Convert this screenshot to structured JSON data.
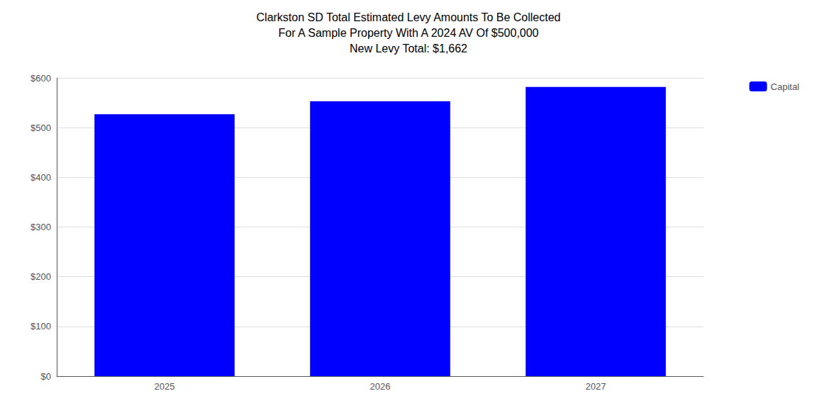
{
  "chart_data": {
    "type": "bar",
    "title": "Clarkston SD Total Estimated Levy Amounts To Be Collected\nFor A Sample Property With A 2024 AV Of $500,000\nNew Levy Total: $1,662",
    "categories": [
      "2025",
      "2026",
      "2027"
    ],
    "series": [
      {
        "name": "Capital",
        "color": "#0000FF",
        "values": [
          527,
          553,
          582
        ]
      }
    ],
    "ylim": [
      0,
      600
    ],
    "yticks": [
      {
        "value": 0,
        "label": "$0"
      },
      {
        "value": 100,
        "label": "$100"
      },
      {
        "value": 200,
        "label": "$200"
      },
      {
        "value": 300,
        "label": "$300"
      },
      {
        "value": 400,
        "label": "$400"
      },
      {
        "value": 500,
        "label": "$500"
      },
      {
        "value": 600,
        "label": "$600"
      }
    ],
    "grid": true,
    "legend": "right"
  }
}
